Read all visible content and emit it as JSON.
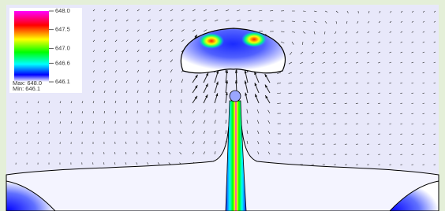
{
  "legend": {
    "ticks": [
      {
        "value": 648.0,
        "label": "648.0"
      },
      647.5,
      {
        "value": 647.0,
        "label": "647.0"
      },
      646.6,
      646.1
    ],
    "range": [
      646.1,
      648.0
    ],
    "max_text": "Max:  648.0",
    "min_text": "Min:  646.1"
  }
}
